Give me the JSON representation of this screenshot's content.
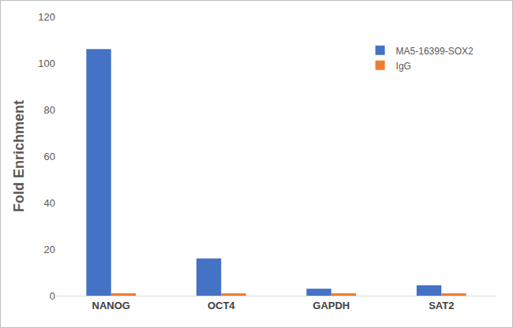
{
  "chart_data": {
    "type": "bar",
    "categories": [
      "NANOG",
      "OCT4",
      "GAPDH",
      "SAT2"
    ],
    "series": [
      {
        "name": "MA5-16399-SOX2",
        "color": "#4472c4",
        "values": [
          106,
          16,
          3,
          4.5
        ]
      },
      {
        "name": "IgG",
        "color": "#ed7d31",
        "values": [
          1,
          1,
          1,
          1
        ]
      }
    ],
    "y_label": "Fold Enrichment",
    "ylim": [
      0,
      120
    ],
    "yticks": [
      0,
      20,
      40,
      60,
      80,
      100,
      120
    ],
    "grid": false,
    "legend": "top right"
  }
}
